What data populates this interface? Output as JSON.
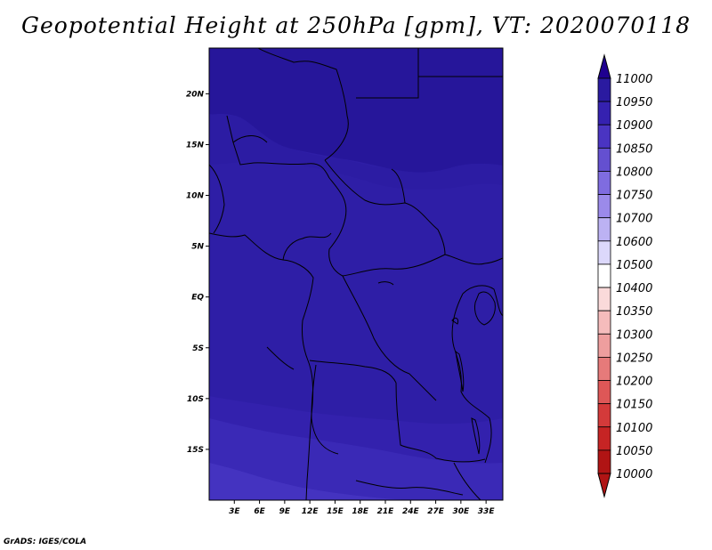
{
  "title": "Geopotential Height at 250hPa [gpm], VT: 2020070118",
  "credit": "GrADS: IGES/COLA",
  "map": {
    "lat_ticks": [
      "20N",
      "15N",
      "10N",
      "5N",
      "EQ",
      "5S",
      "10S",
      "15S"
    ],
    "lat_values": [
      20,
      15,
      10,
      5,
      0,
      -5,
      -10,
      -15
    ],
    "lon_ticks": [
      "3E",
      "6E",
      "9E",
      "12E",
      "15E",
      "18E",
      "21E",
      "24E",
      "27E",
      "30E",
      "33E"
    ],
    "lon_values": [
      3,
      6,
      9,
      12,
      15,
      18,
      21,
      24,
      27,
      30,
      33
    ],
    "lon_range": [
      0,
      35
    ],
    "lat_range": [
      -20,
      24.5
    ],
    "field": "geopotential height",
    "level": "250hPa",
    "units": "gpm",
    "valid_time": "2020070118"
  },
  "colorbar": {
    "levels": [
      "11000",
      "10950",
      "10900",
      "10850",
      "10800",
      "10750",
      "10700",
      "10600",
      "10500",
      "10400",
      "10350",
      "10300",
      "10250",
      "10200",
      "10150",
      "10100",
      "10050",
      "10000"
    ],
    "colors": [
      "#1f0090",
      "#2a1aa0",
      "#3521b0",
      "#4a34c2",
      "#6450d0",
      "#7f6ce0",
      "#9b8aea",
      "#bcb2f3",
      "#dcd8fb",
      "#ffffff",
      "#fadada",
      "#f5bcbc",
      "#ee9e9e",
      "#e67a7a",
      "#de5757",
      "#d43a3a",
      "#c62424",
      "#b01414"
    ]
  }
}
